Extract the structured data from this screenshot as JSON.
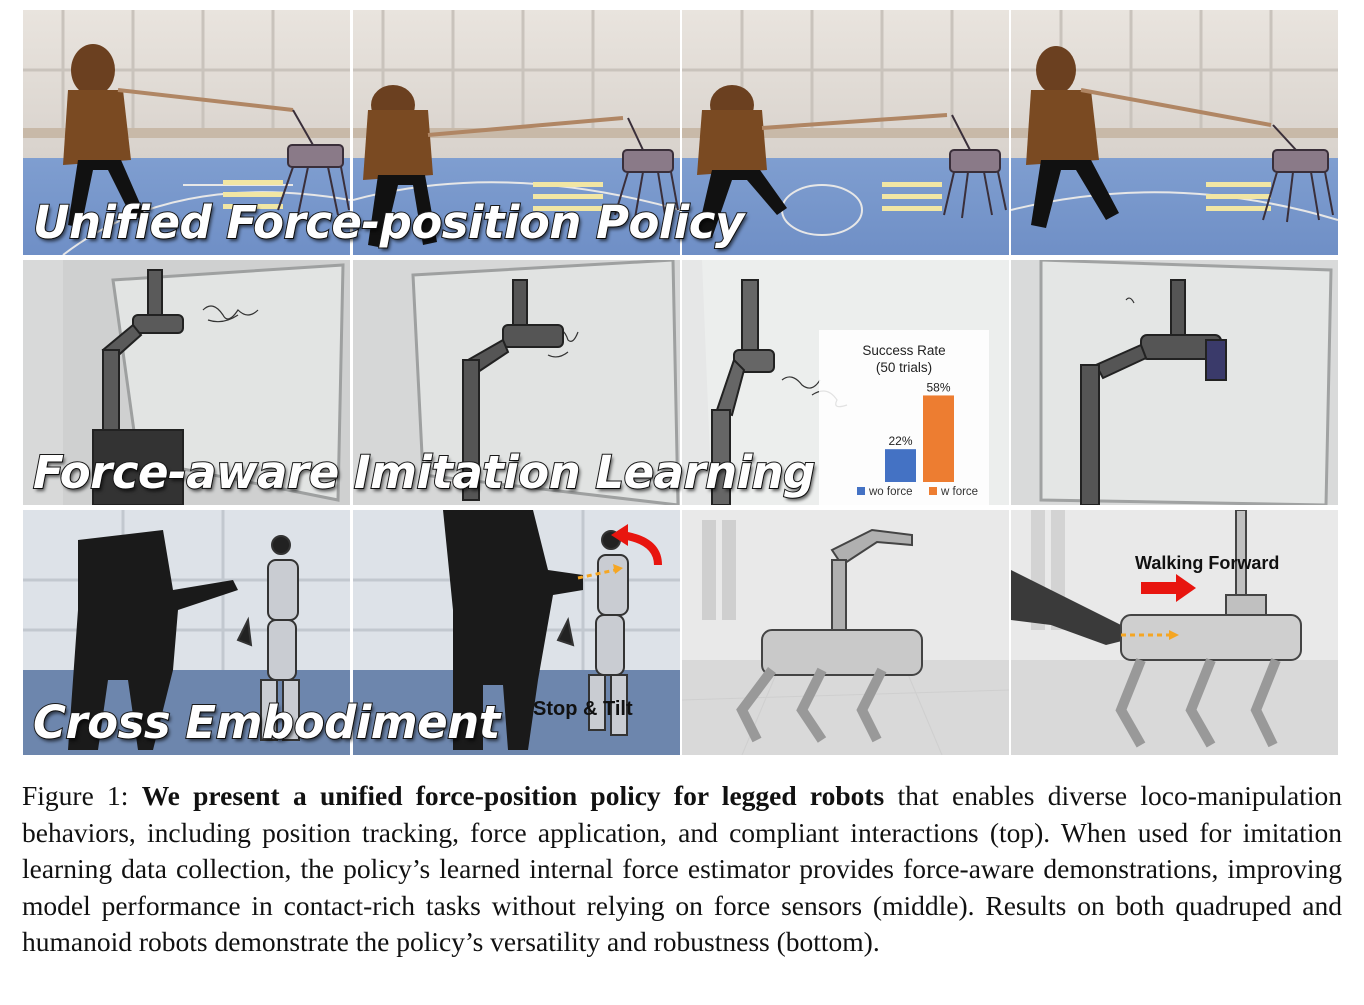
{
  "rows": [
    {
      "title": "Unified Force-position Policy"
    },
    {
      "title": "Force-aware Imitation Learning"
    },
    {
      "title": "Cross Embodiment"
    }
  ],
  "overlays": {
    "stop_tilt": "Stop & Tilt",
    "walking_forward": "Walking Forward"
  },
  "chart_data": {
    "type": "bar",
    "title": "Success Rate",
    "subtitle": "(50 trials)",
    "categories": [
      "wo force",
      "w force"
    ],
    "values": [
      22,
      58
    ],
    "value_labels": [
      "22%",
      "58%"
    ],
    "ylim": [
      0,
      65
    ],
    "colors": [
      "#4472c4",
      "#ed7d31"
    ],
    "legend": [
      "wo force",
      "w force"
    ],
    "legend_position": "bottom"
  },
  "caption": {
    "label": "Figure 1:",
    "bold": "We present a unified force-position policy for legged robots",
    "rest": " that enables diverse loco-manipulation behaviors, including position tracking, force application, and compliant interactions (top). When used for imitation learning data collection, the policy’s learned internal force estimator provides force-aware demonstrations, improving model performance in contact-rich tasks without relying on force sensors (middle). Results on both quadruped and humanoid robots demonstrate the policy’s versatility and robustness (bottom)."
  },
  "colors": {
    "bar_wo_force": "#4472c4",
    "bar_w_force": "#ed7d31",
    "arrow_red": "#e8150f",
    "arrow_orange": "#f5a623"
  }
}
